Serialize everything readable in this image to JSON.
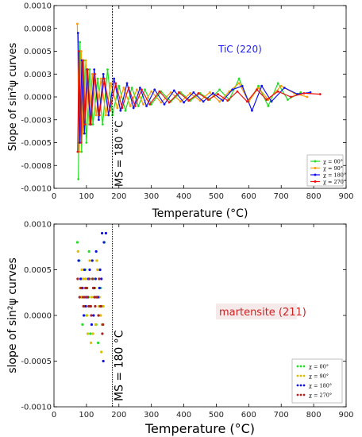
{
  "chart_data": [
    {
      "type": "line",
      "xlabel": "Temperature (°C)",
      "ylabel": "Slope of sin²ψ curves",
      "xlim": [
        0,
        900
      ],
      "ylim": [
        -0.001,
        0.001
      ],
      "x_ticks": [
        "0",
        "100",
        "200",
        "300",
        "400",
        "500",
        "600",
        "700",
        "800",
        "900"
      ],
      "y_ticks": [
        "-0.0010",
        "-0.0008",
        "-0.0005",
        "-0.0003",
        "0.0000",
        "0.0003",
        "0.0005",
        "0.0008",
        "0.0010"
      ],
      "annotation": "TiC (220)",
      "annotation_color": "#1a1aff",
      "ms_line": {
        "x": 180,
        "label": "MS = 180 °C"
      },
      "legend": {
        "placement": "lower-right"
      },
      "series": [
        {
          "name": "χ = 00°",
          "color": "#22dd22",
          "x": [
            75,
            80,
            85,
            92,
            100,
            110,
            120,
            135,
            150,
            165,
            180,
            200,
            220,
            240,
            260,
            280,
            300,
            330,
            360,
            390,
            420,
            450,
            480,
            510,
            540,
            570,
            600,
            630,
            660,
            690,
            720,
            760
          ],
          "y": [
            -0.0009,
            0.0006,
            -0.0006,
            0.0004,
            -0.0005,
            0.0003,
            -0.0003,
            0.0002,
            -0.0003,
            0.0003,
            -0.0002,
            0.00012,
            -0.00015,
            0.0001,
            -0.0001,
            8e-05,
            -8e-05,
            6e-05,
            -5e-05,
            5e-05,
            -4e-05,
            4e-05,
            -3e-05,
            8e-05,
            -3e-05,
            0.0002,
            -5e-05,
            0.00012,
            -0.0001,
            0.00015,
            -3e-05,
            5e-05
          ]
        },
        {
          "name": "χ = 90°",
          "color": "#ff9900",
          "x": [
            72,
            78,
            84,
            90,
            98,
            108,
            118,
            130,
            145,
            160,
            175,
            195,
            215,
            235,
            255,
            275,
            300,
            330,
            360,
            390,
            420,
            450,
            480,
            510,
            540,
            570,
            600,
            630,
            660,
            700,
            740,
            780
          ],
          "y": [
            0.0008,
            -0.0006,
            0.0005,
            -0.0004,
            0.0004,
            -0.0003,
            0.00025,
            -0.0002,
            0.0002,
            -0.0002,
            0.00015,
            -0.00012,
            0.0001,
            -0.0001,
            8e-05,
            -8e-05,
            6e-05,
            -6e-05,
            5e-05,
            -5e-05,
            4e-05,
            -4e-05,
            5e-05,
            -5e-05,
            6e-05,
            0.00015,
            -5e-05,
            0.0001,
            -3e-05,
            0.00012,
            4e-05,
            0.0
          ]
        },
        {
          "name": "χ = 180°",
          "color": "#1111ee",
          "x": [
            74,
            79,
            86,
            94,
            102,
            112,
            124,
            138,
            152,
            168,
            185,
            205,
            225,
            245,
            265,
            285,
            310,
            340,
            370,
            400,
            430,
            460,
            490,
            520,
            550,
            580,
            610,
            640,
            670,
            710,
            750,
            790
          ],
          "y": [
            0.0007,
            -0.0005,
            0.0004,
            -0.0004,
            0.0003,
            -0.0003,
            0.0003,
            -0.00025,
            0.00025,
            -0.0002,
            0.0002,
            -0.00015,
            0.00015,
            -0.00012,
            0.0001,
            -0.0001,
            8e-05,
            -8e-05,
            7e-05,
            -6e-05,
            5e-05,
            -5e-05,
            4e-05,
            -4e-05,
            8e-05,
            0.00012,
            -0.00015,
            0.00012,
            -5e-05,
            0.0001,
            3e-05,
            5e-05
          ]
        },
        {
          "name": "χ = 270°",
          "color": "#ee1111",
          "x": [
            73,
            77,
            83,
            89,
            96,
            104,
            114,
            126,
            140,
            155,
            172,
            190,
            210,
            230,
            250,
            270,
            295,
            325,
            355,
            385,
            415,
            445,
            475,
            505,
            535,
            565,
            595,
            625,
            655,
            690,
            730,
            770,
            820
          ],
          "y": [
            -0.0006,
            0.0005,
            -0.0005,
            0.0004,
            -0.0003,
            0.0003,
            -0.0003,
            0.00025,
            -0.0002,
            0.0002,
            -0.00015,
            0.00015,
            -0.00012,
            0.0001,
            -0.0001,
            8e-05,
            -8e-05,
            6e-05,
            -6e-05,
            5e-05,
            -4e-05,
            4e-05,
            -3e-05,
            3e-05,
            -4e-05,
            6e-05,
            -5e-05,
            8e-05,
            -3e-05,
            6e-05,
            0.0,
            4e-05,
            3e-05
          ]
        }
      ]
    },
    {
      "type": "scatter",
      "xlabel": "Temperature (°C)",
      "ylabel": "slope of sin²ψ curves",
      "xlim": [
        0,
        900
      ],
      "ylim": [
        -0.001,
        0.001
      ],
      "x_ticks": [
        "0",
        "100",
        "200",
        "300",
        "400",
        "500",
        "600",
        "700",
        "800",
        "900"
      ],
      "y_ticks": [
        "-0.0010",
        "-0.0005",
        "0.0000",
        "0.0005",
        "0.0010"
      ],
      "annotation": "martensite (211)",
      "annotation_color": "#cc2222",
      "ms_line": {
        "x": 180,
        "label": "MS = 180 °C"
      },
      "legend": {
        "placement": "lower-right"
      },
      "series": [
        {
          "name": "χ = 00°",
          "color": "#22dd22",
          "x": [
            72,
            78,
            84,
            90,
            96,
            102,
            108,
            114,
            120,
            126,
            132,
            138,
            144,
            150,
            155,
            88,
            100,
            112,
            124,
            136,
            148,
            82,
            94,
            106,
            118,
            130,
            142
          ],
          "y": [
            0.0008,
            0.0006,
            0.0004,
            0.0002,
            0.0005,
            0.0003,
            0.0007,
            0.0001,
            0.0004,
            0.0002,
            0.0006,
            0.0,
            0.0003,
            0.0001,
            0.0008,
            -0.0001,
            0.0,
            -0.0002,
            0.0002,
            -0.0003,
            -0.0001,
            0.0003,
            0.0001,
            0.0002,
            0.0004,
            -0.0001,
            0.0005
          ]
        },
        {
          "name": "χ = 90°",
          "color": "#ddbb00",
          "x": [
            74,
            80,
            86,
            92,
            98,
            104,
            110,
            116,
            122,
            128,
            134,
            140,
            146,
            152,
            90,
            102,
            114,
            126,
            138,
            150,
            84,
            96,
            108,
            120,
            132,
            144
          ],
          "y": [
            0.0007,
            0.0003,
            0.0005,
            0.0001,
            0.0004,
            -0.0002,
            0.0006,
            0.0002,
            0.0003,
            -0.0001,
            0.0005,
            0.0002,
            -0.0004,
            0.0001,
            0.0004,
            0.0,
            -0.0003,
            0.0003,
            0.0001,
            -0.0001,
            0.0002,
            0.0004,
            0.0001,
            -0.0002,
            0.0006,
            0.0
          ]
        },
        {
          "name": "χ = 180°",
          "color": "#1111dd",
          "x": [
            76,
            82,
            88,
            94,
            100,
            106,
            112,
            118,
            124,
            130,
            136,
            142,
            148,
            154,
            160,
            92,
            104,
            116,
            128,
            140,
            152,
            86,
            98,
            110,
            122,
            134,
            146
          ],
          "y": [
            0.0006,
            0.0004,
            0.0003,
            0.0005,
            0.0002,
            0.0004,
            0.0001,
            0.0006,
            0.0003,
            0.0007,
            0.0002,
            0.0005,
            0.0009,
            0.0008,
            0.0009,
            0.0,
            0.0002,
            -0.0001,
            0.0004,
            0.0003,
            -0.0005,
            0.0003,
            0.0001,
            0.0005,
            0.0,
            0.0002,
            0.0004
          ]
        },
        {
          "name": "χ = 270°",
          "color": "#aa2222",
          "x": [
            73,
            79,
            85,
            91,
            97,
            103,
            109,
            115,
            121,
            127,
            133,
            139,
            145,
            151,
            89,
            101,
            113,
            125,
            137,
            149,
            83,
            95,
            107,
            119,
            131,
            143
          ],
          "y": [
            0.0004,
            0.0002,
            0.0003,
            0.0001,
            0.0003,
            0.0002,
            0.0004,
            0.0,
            0.0003,
            0.0001,
            0.0002,
            0.0004,
            0.0001,
            -0.0001,
            0.0002,
            0.0003,
            0.0001,
            0.0002,
            0.0,
            -0.0002,
            0.0003,
            0.0002,
            0.0001,
            0.0004,
            0.0002,
            0.0001
          ]
        }
      ]
    }
  ]
}
